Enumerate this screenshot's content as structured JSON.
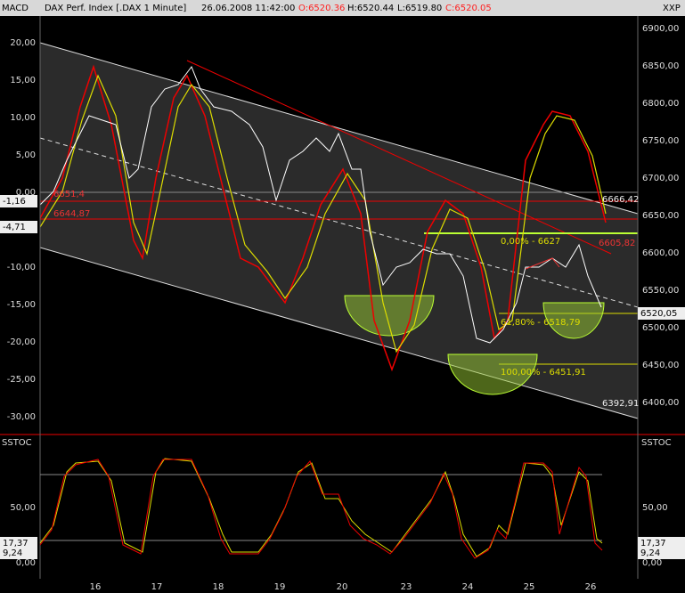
{
  "header": {
    "title": "DAX Perf. Index [.DAX  1 Minute]",
    "date": "26.06.2008 11:42:00",
    "open": "O:6520.36",
    "high": "H:6520.44",
    "low": "L:6519.80",
    "close": "C:6520.05"
  },
  "main": {
    "left_label": "MACD",
    "right_label": "XXP",
    "left_ticks": [
      "20,00",
      "15,00",
      "10,00",
      "5,00",
      "0,00",
      "-5,00",
      "-10,00",
      "-15,00",
      "-20,00",
      "-25,00",
      "-30,00"
    ],
    "right_ticks": [
      "6900,00",
      "6850,00",
      "6800,00",
      "6750,00",
      "6700,00",
      "6650,00",
      "6600,00",
      "6550,00",
      "6500,00",
      "6450,00",
      "6400,00"
    ],
    "left_markers": [
      "-1,16",
      "-4,71"
    ],
    "right_marker": "6520,05",
    "annotations": [
      "6651,4",
      "6644,87",
      "0,00% - 6627",
      "61,80% - 6518,79",
      "100,00% - 6451,91",
      "6666,42",
      "6605,82",
      "6392,91"
    ]
  },
  "stoch": {
    "left_label": "SSTOC",
    "right_label": "SSTOC",
    "left_ticks": [
      "50,00",
      "0,00"
    ],
    "right_ticks": [
      "50,00",
      "0,00"
    ],
    "left_markers": [
      "17,37",
      "9,24"
    ],
    "right_markers": [
      "17,37",
      "9,24"
    ]
  },
  "x_labels": [
    "16",
    "17",
    "18",
    "19",
    "20",
    "23",
    "24",
    "25",
    "26"
  ]
}
